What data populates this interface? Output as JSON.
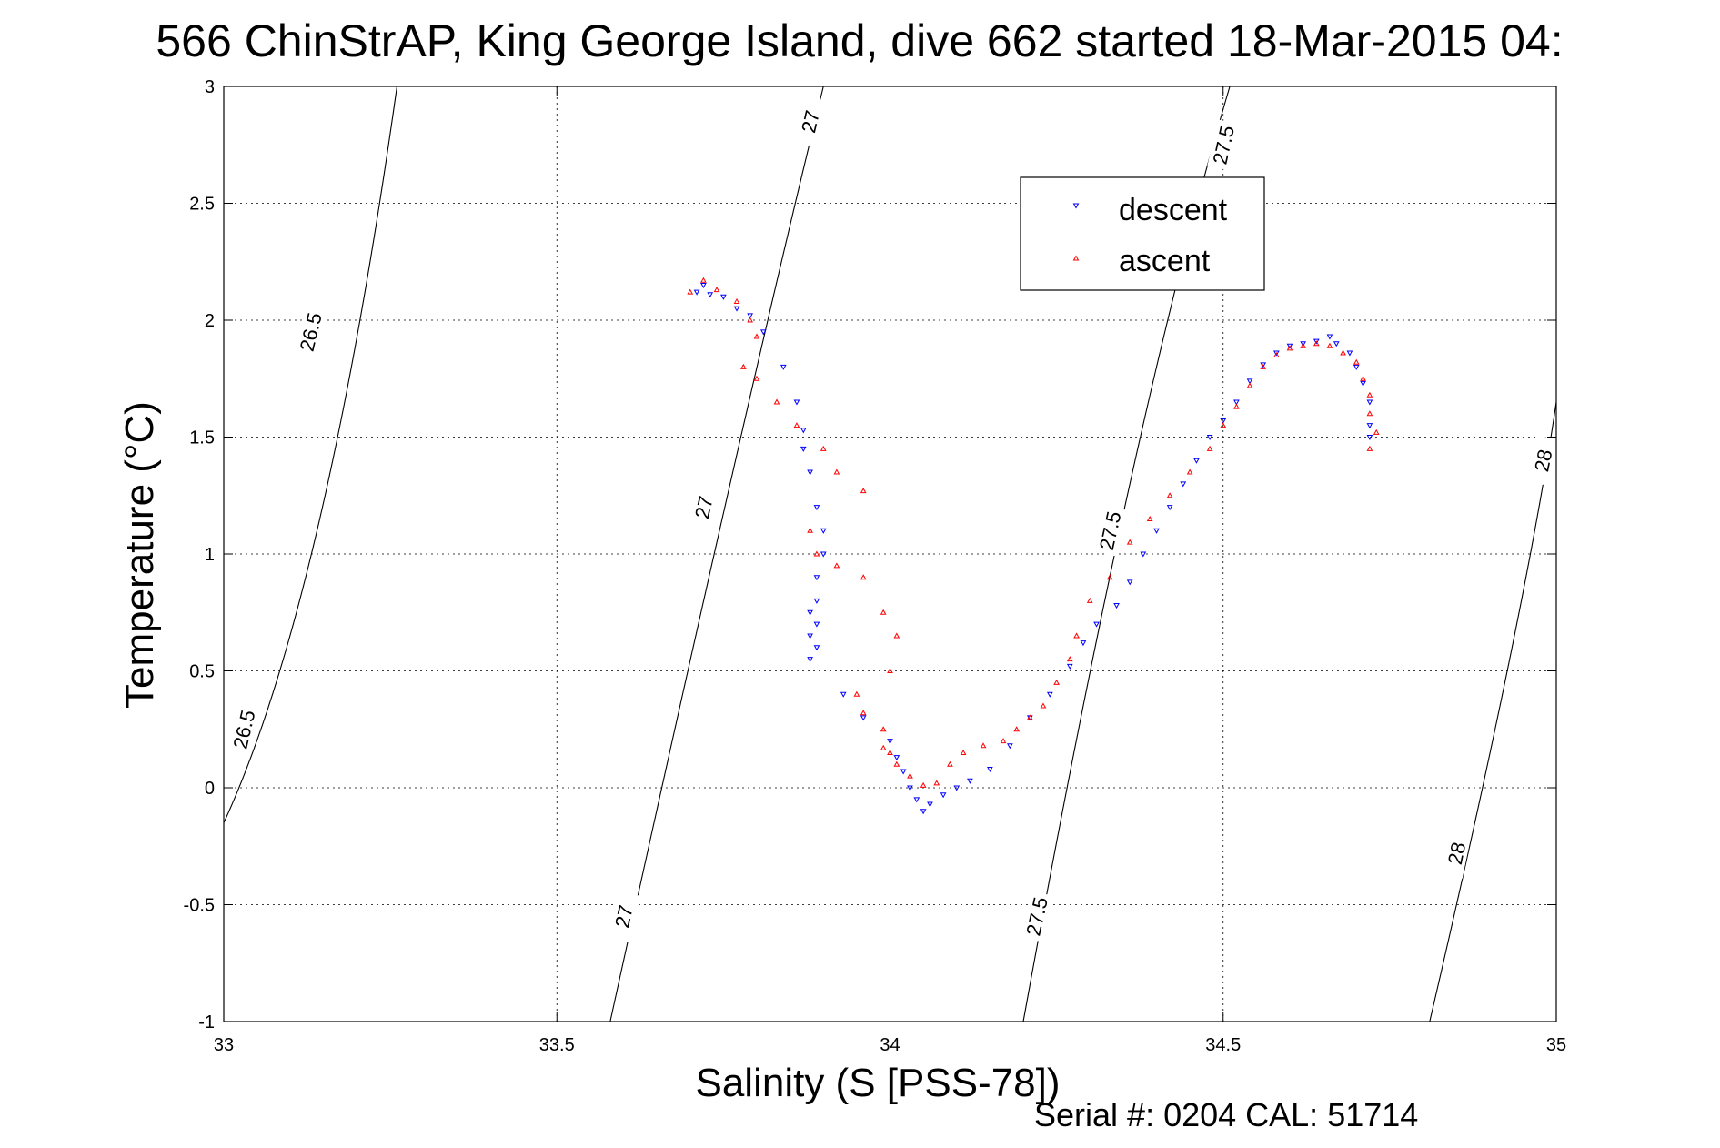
{
  "chart_data": {
    "type": "scatter",
    "title": "566 ChinStrAP, King George Island, dive 662 started 18-Mar-2015 04:",
    "xlabel": "Salinity (S [PSS-78])",
    "ylabel": "Temperature (°C)",
    "xlim": [
      33,
      35
    ],
    "ylim": [
      -1,
      3
    ],
    "x_ticks": [
      33,
      33.5,
      34,
      34.5,
      35
    ],
    "x_tick_labels": [
      "33",
      "33.5",
      "34",
      "34.5",
      "35"
    ],
    "y_ticks": [
      -1,
      -0.5,
      0,
      0.5,
      1,
      1.5,
      2,
      2.5,
      3
    ],
    "y_tick_labels": [
      "-1",
      "-0.5",
      "0",
      "0.5",
      "1",
      "1.5",
      "2",
      "2.5",
      "3"
    ],
    "grid": true,
    "legend_position": "top-right",
    "footer": "Serial #: 0204  CAL: 51714",
    "contours": [
      {
        "level_label": "26.5",
        "points": [
          [
            33.0,
            -0.15
          ],
          [
            33.14,
            1.1
          ],
          [
            33.26,
            3.0
          ]
        ],
        "labels": [
          [
            33.13,
            1.95
          ],
          [
            33.03,
            0.25
          ]
        ]
      },
      {
        "level_label": "27",
        "points": [
          [
            33.58,
            -1.0
          ],
          [
            33.76,
            1.3
          ],
          [
            33.9,
            3.0
          ]
        ],
        "labels": [
          [
            33.88,
            2.85
          ],
          [
            33.72,
            1.2
          ],
          [
            33.6,
            -0.55
          ]
        ]
      },
      {
        "level_label": "27.5",
        "points": [
          [
            34.2,
            -1.0
          ],
          [
            34.36,
            1.3
          ],
          [
            34.51,
            3.0
          ]
        ],
        "labels": [
          [
            34.5,
            2.75
          ],
          [
            34.33,
            1.1
          ],
          [
            34.22,
            -0.55
          ]
        ]
      },
      {
        "level_label": "28",
        "points": [
          [
            34.81,
            -1.0
          ],
          [
            34.93,
            0.55
          ],
          [
            35.0,
            1.65
          ]
        ],
        "labels": [
          [
            34.98,
            1.4
          ],
          [
            34.85,
            -0.28
          ]
        ]
      }
    ],
    "series": [
      {
        "name": "descent",
        "color": "#0000ff",
        "marker": "down-triangle",
        "points": [
          [
            33.71,
            2.12
          ],
          [
            33.72,
            2.15
          ],
          [
            33.73,
            2.11
          ],
          [
            33.75,
            2.1
          ],
          [
            33.77,
            2.05
          ],
          [
            33.79,
            2.02
          ],
          [
            33.81,
            1.95
          ],
          [
            33.84,
            1.8
          ],
          [
            33.86,
            1.65
          ],
          [
            33.87,
            1.53
          ],
          [
            33.87,
            1.45
          ],
          [
            33.88,
            1.35
          ],
          [
            33.89,
            1.2
          ],
          [
            33.9,
            1.1
          ],
          [
            33.9,
            1.0
          ],
          [
            33.89,
            0.9
          ],
          [
            33.89,
            0.8
          ],
          [
            33.88,
            0.75
          ],
          [
            33.89,
            0.7
          ],
          [
            33.88,
            0.65
          ],
          [
            33.89,
            0.6
          ],
          [
            33.88,
            0.55
          ],
          [
            33.93,
            0.4
          ],
          [
            33.96,
            0.3
          ],
          [
            34.0,
            0.2
          ],
          [
            34.01,
            0.13
          ],
          [
            34.02,
            0.07
          ],
          [
            34.03,
            0.0
          ],
          [
            34.04,
            -0.05
          ],
          [
            34.05,
            -0.1
          ],
          [
            34.06,
            -0.07
          ],
          [
            34.08,
            -0.03
          ],
          [
            34.1,
            0.0
          ],
          [
            34.12,
            0.03
          ],
          [
            34.15,
            0.08
          ],
          [
            34.18,
            0.18
          ],
          [
            34.21,
            0.3
          ],
          [
            34.24,
            0.4
          ],
          [
            34.27,
            0.52
          ],
          [
            34.29,
            0.62
          ],
          [
            34.31,
            0.7
          ],
          [
            34.34,
            0.78
          ],
          [
            34.36,
            0.88
          ],
          [
            34.38,
            1.0
          ],
          [
            34.4,
            1.1
          ],
          [
            34.42,
            1.2
          ],
          [
            34.44,
            1.3
          ],
          [
            34.46,
            1.4
          ],
          [
            34.48,
            1.5
          ],
          [
            34.5,
            1.57
          ],
          [
            34.52,
            1.65
          ],
          [
            34.54,
            1.74
          ],
          [
            34.56,
            1.81
          ],
          [
            34.58,
            1.86
          ],
          [
            34.6,
            1.89
          ],
          [
            34.62,
            1.9
          ],
          [
            34.64,
            1.91
          ],
          [
            34.66,
            1.93
          ],
          [
            34.67,
            1.9
          ],
          [
            34.69,
            1.86
          ],
          [
            34.7,
            1.8
          ],
          [
            34.71,
            1.73
          ],
          [
            34.72,
            1.65
          ],
          [
            34.72,
            1.55
          ],
          [
            34.72,
            1.5
          ]
        ]
      },
      {
        "name": "ascent",
        "color": "#ff0000",
        "marker": "up-triangle",
        "points": [
          [
            33.7,
            2.12
          ],
          [
            33.72,
            2.17
          ],
          [
            33.74,
            2.13
          ],
          [
            33.77,
            2.08
          ],
          [
            33.79,
            2.0
          ],
          [
            33.8,
            1.93
          ],
          [
            33.78,
            1.8
          ],
          [
            33.8,
            1.75
          ],
          [
            33.83,
            1.65
          ],
          [
            33.86,
            1.55
          ],
          [
            33.9,
            1.45
          ],
          [
            33.92,
            1.35
          ],
          [
            33.96,
            1.27
          ],
          [
            33.88,
            1.1
          ],
          [
            33.89,
            1.0
          ],
          [
            33.92,
            0.95
          ],
          [
            33.96,
            0.9
          ],
          [
            33.99,
            0.75
          ],
          [
            34.01,
            0.65
          ],
          [
            34.0,
            0.5
          ],
          [
            33.95,
            0.4
          ],
          [
            33.96,
            0.32
          ],
          [
            33.99,
            0.25
          ],
          [
            34.0,
            0.15
          ],
          [
            33.99,
            0.17
          ],
          [
            34.01,
            0.1
          ],
          [
            34.03,
            0.05
          ],
          [
            34.05,
            0.01
          ],
          [
            34.07,
            0.02
          ],
          [
            34.09,
            0.1
          ],
          [
            34.11,
            0.15
          ],
          [
            34.14,
            0.18
          ],
          [
            34.17,
            0.2
          ],
          [
            34.19,
            0.25
          ],
          [
            34.21,
            0.3
          ],
          [
            34.23,
            0.35
          ],
          [
            34.25,
            0.45
          ],
          [
            34.27,
            0.55
          ],
          [
            34.28,
            0.65
          ],
          [
            34.3,
            0.8
          ],
          [
            34.33,
            0.9
          ],
          [
            34.36,
            1.05
          ],
          [
            34.39,
            1.15
          ],
          [
            34.42,
            1.25
          ],
          [
            34.45,
            1.35
          ],
          [
            34.48,
            1.45
          ],
          [
            34.5,
            1.55
          ],
          [
            34.52,
            1.63
          ],
          [
            34.54,
            1.72
          ],
          [
            34.56,
            1.8
          ],
          [
            34.58,
            1.85
          ],
          [
            34.6,
            1.88
          ],
          [
            34.62,
            1.89
          ],
          [
            34.64,
            1.9
          ],
          [
            34.66,
            1.89
          ],
          [
            34.68,
            1.86
          ],
          [
            34.7,
            1.82
          ],
          [
            34.71,
            1.75
          ],
          [
            34.72,
            1.68
          ],
          [
            34.72,
            1.6
          ],
          [
            34.73,
            1.52
          ],
          [
            34.72,
            1.45
          ]
        ]
      }
    ]
  }
}
